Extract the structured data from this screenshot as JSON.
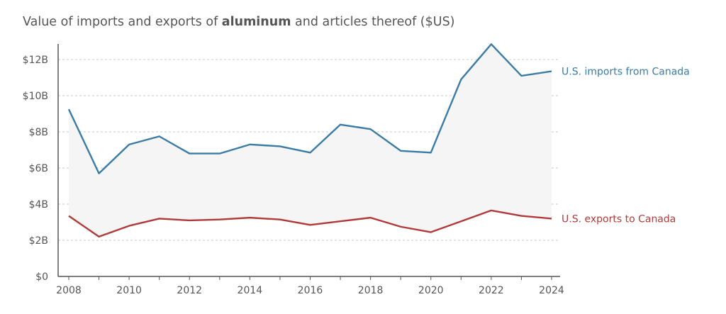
{
  "chart_data": {
    "type": "line",
    "title": {
      "prefix": "Value of imports and exports of ",
      "bold": "aluminum",
      "suffix": " and articles thereof ($US)"
    },
    "x": [
      2008,
      2009,
      2010,
      2011,
      2012,
      2013,
      2014,
      2015,
      2016,
      2017,
      2018,
      2019,
      2020,
      2021,
      2022,
      2023,
      2024
    ],
    "x_tick_labels": [
      "2008",
      "2010",
      "2012",
      "2014",
      "2016",
      "2018",
      "2020",
      "2022",
      "2024"
    ],
    "y_tick_labels": [
      "$0",
      "$2B",
      "$4B",
      "$6B",
      "$8B",
      "$10B",
      "$12B"
    ],
    "y_ticks": [
      0,
      2,
      4,
      6,
      8,
      10,
      12
    ],
    "ylim": [
      0,
      13
    ],
    "xlim": [
      2008,
      2024
    ],
    "grid": true,
    "series": [
      {
        "name": "U.S. imports from Canada",
        "color": "#3a7ca5",
        "values": [
          9.25,
          5.7,
          7.3,
          7.75,
          6.8,
          6.8,
          7.3,
          7.2,
          6.85,
          8.4,
          8.15,
          6.95,
          6.85,
          10.9,
          12.85,
          11.1,
          11.35
        ]
      },
      {
        "name": "U.S. exports to Canada",
        "color": "#b03a3a",
        "values": [
          3.35,
          2.2,
          2.8,
          3.2,
          3.1,
          3.15,
          3.25,
          3.15,
          2.85,
          3.05,
          3.25,
          2.75,
          2.45,
          3.05,
          3.65,
          3.35,
          3.2
        ]
      }
    ],
    "fill_between": true,
    "legend": "end-of-line labels"
  },
  "colors": {
    "axis": "#555555",
    "grid": "#c8c8c8",
    "fill": "#f5f5f5",
    "tick_text": "#555555"
  }
}
